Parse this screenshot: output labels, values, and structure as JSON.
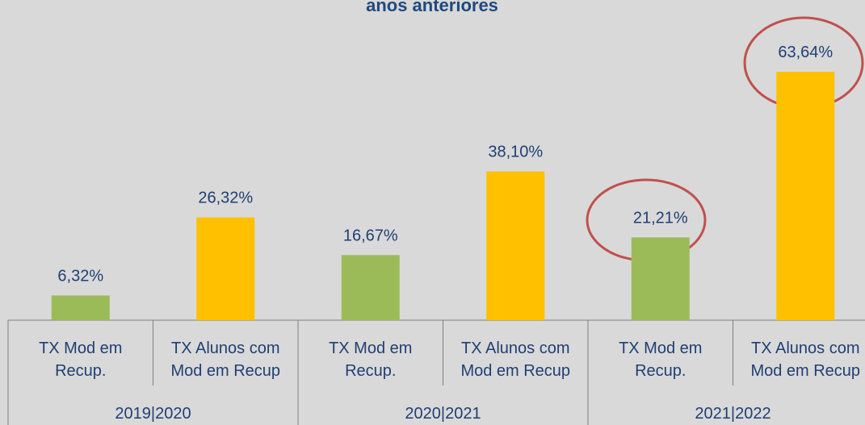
{
  "chart_data": {
    "type": "bar",
    "title": "anos anteriores",
    "categories": [
      "TX Mod em Recup.",
      "TX Alunos com Mod em Recup",
      "TX Mod em Recup.",
      "TX Alunos com Mod em Recup",
      "TX Mod em Recup.",
      "TX Alunos com Mod em Recup"
    ],
    "groups": [
      "2019|2020",
      "2020|2021",
      "2021|2022"
    ],
    "values": [
      6.32,
      26.32,
      16.67,
      38.1,
      21.21,
      63.64
    ],
    "value_labels": [
      "6,32%",
      "26,32%",
      "16,67%",
      "38,10%",
      "21,21%",
      "63,64%"
    ],
    "colors": [
      "#9bbb59",
      "#ffc000",
      "#9bbb59",
      "#ffc000",
      "#9bbb59",
      "#ffc000"
    ]
  }
}
